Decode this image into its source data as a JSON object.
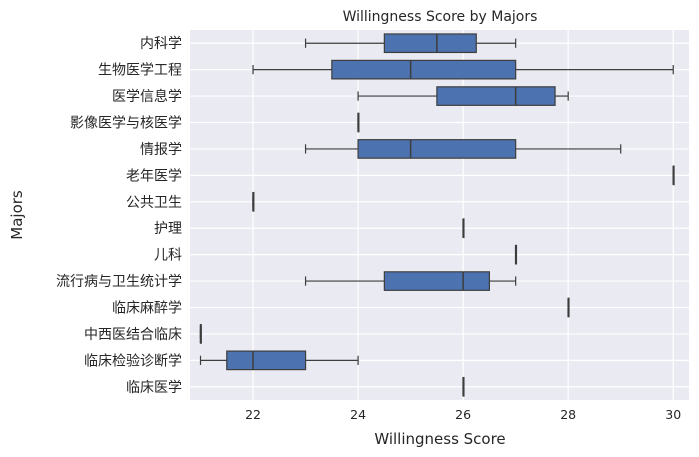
{
  "chart_data": {
    "type": "boxplot",
    "orientation": "horizontal",
    "title": "Willingness Score by Majors",
    "xlabel": "Willingness Score",
    "ylabel": "Majors",
    "xlim": [
      20.8,
      30.3
    ],
    "xticks": [
      22,
      24,
      26,
      28,
      30
    ],
    "grid": true,
    "background_color": "#eaeaf2",
    "box_color": "#4c72b0",
    "line_color": "#3d3d3d",
    "categories": [
      "内科学",
      "生物医学工程",
      "医学信息学",
      "影像医学与核医学",
      "情报学",
      "老年医学",
      "公共卫生",
      "护理",
      "儿科",
      "流行病与卫生统计学",
      "临床麻醉学",
      "中西医结合临床",
      "临床检验诊断学",
      "临床医学"
    ],
    "boxes": [
      {
        "category": "内科学",
        "min": 23,
        "q1": 24.5,
        "median": 25.5,
        "q3": 26.25,
        "max": 27
      },
      {
        "category": "生物医学工程",
        "min": 22,
        "q1": 23.5,
        "median": 25,
        "q3": 27,
        "max": 30
      },
      {
        "category": "医学信息学",
        "min": 24,
        "q1": 25.5,
        "median": 27,
        "q3": 27.75,
        "max": 28
      },
      {
        "category": "影像医学与核医学",
        "min": 24,
        "q1": 24,
        "median": 24,
        "q3": 24,
        "max": 24
      },
      {
        "category": "情报学",
        "min": 23,
        "q1": 24,
        "median": 25,
        "q3": 27,
        "max": 29
      },
      {
        "category": "老年医学",
        "min": 30,
        "q1": 30,
        "median": 30,
        "q3": 30,
        "max": 30
      },
      {
        "category": "公共卫生",
        "min": 22,
        "q1": 22,
        "median": 22,
        "q3": 22,
        "max": 22
      },
      {
        "category": "护理",
        "min": 26,
        "q1": 26,
        "median": 26,
        "q3": 26,
        "max": 26
      },
      {
        "category": "儿科",
        "min": 27,
        "q1": 27,
        "median": 27,
        "q3": 27,
        "max": 27
      },
      {
        "category": "流行病与卫生统计学",
        "min": 23,
        "q1": 24.5,
        "median": 26,
        "q3": 26.5,
        "max": 27
      },
      {
        "category": "临床麻醉学",
        "min": 28,
        "q1": 28,
        "median": 28,
        "q3": 28,
        "max": 28
      },
      {
        "category": "中西医结合临床",
        "min": 21,
        "q1": 21,
        "median": 21,
        "q3": 21,
        "max": 21
      },
      {
        "category": "临床检验诊断学",
        "min": 21,
        "q1": 21.5,
        "median": 22,
        "q3": 23,
        "max": 24
      },
      {
        "category": "临床医学",
        "min": 26,
        "q1": 26,
        "median": 26,
        "q3": 26,
        "max": 26
      }
    ]
  }
}
